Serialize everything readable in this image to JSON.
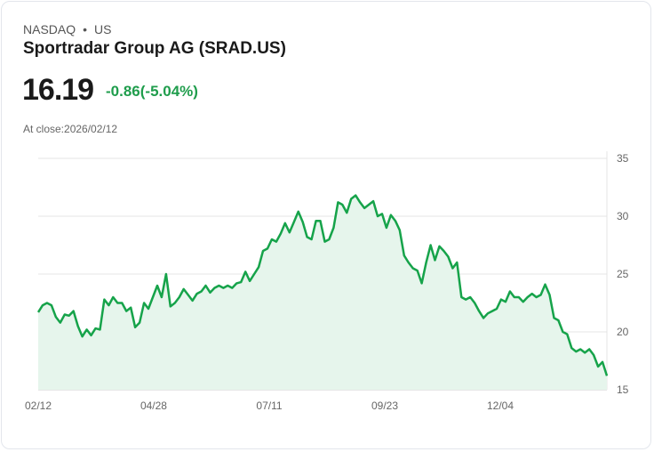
{
  "header": {
    "exchange": "NASDAQ",
    "separator": "•",
    "region": "US",
    "title": "Sportradar Group AG (SRAD.US)",
    "price": "16.19",
    "change": "-0.86(-5.04%)",
    "close_label": "At close:2026/02/12"
  },
  "colors": {
    "line": "#16a34a",
    "fill": "#e6f5ec",
    "change": "#1f9d4c"
  },
  "chart_data": {
    "type": "area",
    "title": "Sportradar Group AG (SRAD.US)",
    "ylim": [
      15,
      35
    ],
    "yticks": [
      "35",
      "30",
      "25",
      "20",
      "15"
    ],
    "ytick_values": [
      35,
      30,
      25,
      20,
      15
    ],
    "xticks": [
      "02/12",
      "04/28",
      "07/11",
      "09/23",
      "12/04"
    ],
    "xtick_positions": [
      0,
      0.2031,
      0.4062,
      0.6094,
      0.8125
    ],
    "grid": true,
    "values": [
      21.7,
      22.3,
      22.5,
      22.3,
      21.3,
      20.8,
      21.5,
      21.4,
      21.8,
      20.5,
      19.6,
      20.2,
      19.7,
      20.3,
      20.2,
      22.8,
      22.3,
      23.0,
      22.5,
      22.5,
      21.8,
      22.1,
      20.4,
      20.8,
      22.5,
      22.0,
      23.0,
      24.0,
      23.0,
      25.0,
      22.2,
      22.5,
      23.0,
      23.7,
      23.2,
      22.7,
      23.3,
      23.5,
      24.0,
      23.4,
      23.8,
      24.0,
      23.8,
      24.0,
      23.8,
      24.2,
      24.3,
      25.2,
      24.4,
      25.0,
      25.6,
      27.0,
      27.2,
      28.0,
      27.8,
      28.5,
      29.4,
      28.6,
      29.5,
      30.4,
      29.5,
      28.2,
      28.0,
      29.6,
      29.6,
      27.8,
      28.0,
      29.0,
      31.2,
      31.0,
      30.3,
      31.5,
      31.8,
      31.2,
      30.7,
      31.0,
      31.3,
      30.0,
      30.2,
      29.0,
      30.1,
      29.6,
      28.8,
      26.6,
      26.0,
      25.5,
      25.3,
      24.2,
      26.0,
      27.5,
      26.2,
      27.4,
      27.0,
      26.5,
      25.5,
      26.0,
      23.0,
      22.8,
      23.0,
      22.5,
      21.8,
      21.2,
      21.6,
      21.8,
      22.0,
      22.8,
      22.6,
      23.5,
      23.0,
      23.0,
      22.6,
      23.0,
      23.3,
      23.0,
      23.2,
      24.1,
      23.2,
      21.2,
      21.0,
      20.0,
      19.8,
      18.6,
      18.3,
      18.5,
      18.2,
      18.5,
      18.0,
      17.0,
      17.4,
      16.2
    ]
  }
}
